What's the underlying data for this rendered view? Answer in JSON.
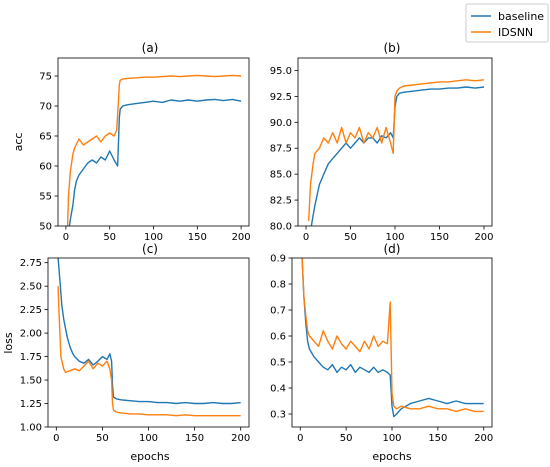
{
  "legend": {
    "entries": [
      {
        "name": "baseline",
        "color": "#1f77b4"
      },
      {
        "name": "IDSNN",
        "color": "#ff7f0e"
      }
    ],
    "placement": "top-right"
  },
  "chart_data": [
    {
      "type": "line",
      "title": "(a)",
      "xlabel": "",
      "ylabel": "acc",
      "xlim": [
        -9,
        209
      ],
      "ylim": [
        50,
        78
      ],
      "xticks": [
        0,
        50,
        100,
        150,
        200
      ],
      "yticks": [
        50,
        55,
        60,
        65,
        70,
        75
      ],
      "ytick_labels": [
        "50",
        "55",
        "60",
        "65",
        "70",
        "75"
      ],
      "series": [
        {
          "name": "baseline",
          "color": "#1f77b4",
          "x": [
            2,
            5,
            8,
            10,
            12,
            15,
            20,
            25,
            30,
            35,
            40,
            45,
            50,
            55,
            59,
            60,
            61,
            62,
            65,
            70,
            80,
            90,
            100,
            110,
            120,
            130,
            140,
            150,
            160,
            170,
            180,
            190,
            200
          ],
          "y": [
            48,
            51,
            53.5,
            56,
            57.5,
            58.5,
            59.5,
            60.5,
            61,
            60.5,
            61.5,
            61,
            62.5,
            61,
            60,
            64,
            68,
            69.5,
            70,
            70.2,
            70.4,
            70.6,
            70.8,
            70.6,
            71,
            70.8,
            71,
            70.8,
            71,
            71.1,
            70.9,
            71.1,
            70.8
          ]
        },
        {
          "name": "IDSNN",
          "color": "#ff7f0e",
          "x": [
            2,
            3,
            5,
            8,
            10,
            15,
            20,
            25,
            30,
            35,
            40,
            45,
            50,
            55,
            58,
            60,
            61,
            62,
            65,
            70,
            80,
            90,
            100,
            110,
            120,
            130,
            140,
            150,
            160,
            170,
            180,
            190,
            200
          ],
          "y": [
            50,
            55,
            59,
            62,
            63,
            64.5,
            63.5,
            64,
            64.5,
            65,
            64,
            65,
            65.5,
            65,
            66,
            71,
            73.5,
            74.3,
            74.5,
            74.6,
            74.7,
            74.8,
            74.8,
            74.9,
            75,
            74.9,
            75,
            75.1,
            75,
            74.9,
            75,
            75.1,
            75
          ]
        }
      ]
    },
    {
      "type": "line",
      "title": "(b)",
      "xlabel": "",
      "ylabel": "",
      "xlim": [
        -9,
        209
      ],
      "ylim": [
        80,
        96.2
      ],
      "xticks": [
        0,
        50,
        100,
        150,
        200
      ],
      "yticks": [
        80,
        82.5,
        85,
        87.5,
        90,
        92.5,
        95
      ],
      "ytick_labels": [
        "80.0",
        "82.5",
        "85.0",
        "87.5",
        "90.0",
        "92.5",
        "95.0"
      ],
      "series": [
        {
          "name": "baseline",
          "color": "#1f77b4",
          "x": [
            5,
            8,
            10,
            15,
            20,
            25,
            30,
            35,
            40,
            45,
            50,
            55,
            60,
            65,
            70,
            75,
            80,
            85,
            90,
            95,
            98,
            100,
            102,
            105,
            110,
            120,
            130,
            140,
            150,
            160,
            170,
            180,
            190,
            200
          ],
          "y": [
            79.5,
            81,
            82,
            84,
            85,
            86,
            86.5,
            87,
            87.5,
            88,
            87.5,
            88,
            88.5,
            88,
            88.5,
            88.5,
            88,
            88.7,
            88.5,
            89,
            88.5,
            91.5,
            92.5,
            92.8,
            92.9,
            93,
            93.1,
            93.2,
            93.2,
            93.3,
            93.3,
            93.4,
            93.3,
            93.4
          ]
        },
        {
          "name": "IDSNN",
          "color": "#ff7f0e",
          "x": [
            3,
            5,
            8,
            10,
            15,
            20,
            25,
            30,
            35,
            40,
            45,
            50,
            55,
            60,
            65,
            70,
            75,
            80,
            85,
            90,
            95,
            98,
            100,
            102,
            105,
            110,
            120,
            130,
            140,
            150,
            160,
            170,
            180,
            190,
            200
          ],
          "y": [
            80.5,
            84,
            86,
            87,
            87.5,
            88.5,
            88,
            89,
            88,
            89.5,
            88,
            89,
            88.5,
            89.5,
            88,
            89,
            88.5,
            89.5,
            88,
            89.5,
            88,
            87,
            92.5,
            93,
            93.3,
            93.5,
            93.6,
            93.7,
            93.8,
            93.9,
            93.9,
            94,
            94.1,
            94,
            94.1
          ]
        }
      ]
    },
    {
      "type": "line",
      "title": "(c)",
      "xlabel": "epochs",
      "ylabel": "loss",
      "xlim": [
        -9,
        209
      ],
      "ylim": [
        1.0,
        2.8
      ],
      "xticks": [
        0,
        50,
        100,
        150,
        200
      ],
      "yticks": [
        1.0,
        1.25,
        1.5,
        1.75,
        2.0,
        2.25,
        2.5,
        2.75
      ],
      "ytick_labels": [
        "1.00",
        "1.25",
        "1.50",
        "1.75",
        "2.00",
        "2.25",
        "2.50",
        "2.75"
      ],
      "series": [
        {
          "name": "baseline",
          "color": "#1f77b4",
          "x": [
            2,
            4,
            6,
            8,
            10,
            12,
            15,
            18,
            20,
            25,
            30,
            35,
            40,
            45,
            50,
            55,
            58,
            60,
            61,
            62,
            65,
            70,
            80,
            90,
            100,
            110,
            120,
            130,
            140,
            150,
            160,
            170,
            180,
            190,
            200
          ],
          "y": [
            2.8,
            2.55,
            2.3,
            2.15,
            2.05,
            1.95,
            1.85,
            1.78,
            1.75,
            1.7,
            1.68,
            1.72,
            1.66,
            1.7,
            1.75,
            1.72,
            1.78,
            1.7,
            1.45,
            1.32,
            1.3,
            1.29,
            1.28,
            1.27,
            1.27,
            1.26,
            1.26,
            1.25,
            1.26,
            1.25,
            1.25,
            1.26,
            1.25,
            1.25,
            1.26
          ]
        },
        {
          "name": "IDSNN",
          "color": "#ff7f0e",
          "x": [
            2,
            3,
            5,
            8,
            10,
            15,
            20,
            25,
            30,
            35,
            40,
            45,
            50,
            55,
            58,
            60,
            61,
            62,
            65,
            70,
            80,
            90,
            100,
            110,
            120,
            130,
            140,
            150,
            160,
            170,
            180,
            190,
            200
          ],
          "y": [
            2.5,
            2.2,
            1.75,
            1.62,
            1.58,
            1.6,
            1.62,
            1.6,
            1.65,
            1.7,
            1.62,
            1.68,
            1.65,
            1.7,
            1.62,
            1.5,
            1.25,
            1.18,
            1.16,
            1.15,
            1.14,
            1.14,
            1.13,
            1.13,
            1.13,
            1.12,
            1.13,
            1.12,
            1.12,
            1.12,
            1.12,
            1.12,
            1.12
          ]
        }
      ]
    },
    {
      "type": "line",
      "title": "(d)",
      "xlabel": "epochs",
      "ylabel": "",
      "xlim": [
        -9,
        209
      ],
      "ylim": [
        0.25,
        0.9
      ],
      "xticks": [
        0,
        50,
        100,
        150,
        200
      ],
      "yticks": [
        0.3,
        0.4,
        0.5,
        0.6,
        0.7,
        0.8,
        0.9
      ],
      "ytick_labels": [
        "0.3",
        "0.4",
        "0.5",
        "0.6",
        "0.7",
        "0.8",
        "0.9"
      ],
      "series": [
        {
          "name": "baseline",
          "color": "#1f77b4",
          "x": [
            2,
            4,
            6,
            8,
            10,
            15,
            20,
            25,
            30,
            35,
            40,
            45,
            50,
            55,
            60,
            65,
            70,
            75,
            80,
            85,
            90,
            95,
            98,
            100,
            102,
            105,
            110,
            120,
            130,
            140,
            150,
            160,
            170,
            180,
            190,
            200
          ],
          "y": [
            0.9,
            0.75,
            0.65,
            0.58,
            0.55,
            0.52,
            0.5,
            0.48,
            0.47,
            0.49,
            0.46,
            0.48,
            0.47,
            0.49,
            0.46,
            0.48,
            0.47,
            0.46,
            0.48,
            0.46,
            0.47,
            0.46,
            0.45,
            0.33,
            0.29,
            0.3,
            0.32,
            0.34,
            0.35,
            0.36,
            0.35,
            0.34,
            0.35,
            0.34,
            0.34,
            0.34
          ]
        },
        {
          "name": "IDSNN",
          "color": "#ff7f0e",
          "x": [
            2,
            4,
            6,
            8,
            10,
            15,
            20,
            25,
            30,
            35,
            40,
            45,
            50,
            55,
            60,
            65,
            70,
            75,
            80,
            85,
            90,
            95,
            98,
            100,
            102,
            105,
            110,
            120,
            130,
            140,
            150,
            160,
            170,
            180,
            190,
            200
          ],
          "y": [
            0.9,
            0.75,
            0.68,
            0.62,
            0.6,
            0.58,
            0.56,
            0.62,
            0.58,
            0.55,
            0.6,
            0.57,
            0.55,
            0.58,
            0.56,
            0.54,
            0.58,
            0.55,
            0.6,
            0.56,
            0.58,
            0.57,
            0.73,
            0.38,
            0.33,
            0.32,
            0.33,
            0.32,
            0.32,
            0.33,
            0.32,
            0.32,
            0.31,
            0.32,
            0.31,
            0.31
          ]
        }
      ]
    }
  ]
}
